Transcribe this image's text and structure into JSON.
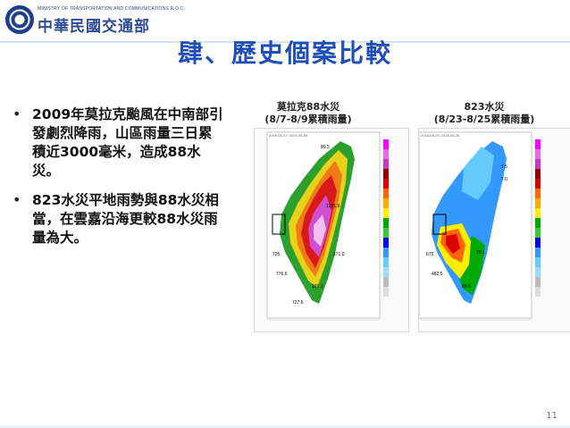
{
  "header": {
    "ministry_en": "MINISTRY OF TRANSPORTATION AND COMMUNICATIONS R.O.C.",
    "ministry_zh": "中華民國交通部"
  },
  "slide": {
    "title": "肆、歷史個案比較",
    "bullets": [
      "2009年莫拉克颱風在中南部引發劇烈降雨，山區雨量三日累積近3000毫米，造成88水災。",
      "823水災平地雨勢與88水災相當，在雲嘉沿海更較88水災雨量為大。"
    ],
    "page_number": "11"
  },
  "maps": [
    {
      "title": "莫拉克88水災",
      "subtitle": "(8/7-8/9累積雨量)",
      "values": [
        "89.5",
        "1221.9",
        "171.0",
        "725.",
        "776.6",
        "191.1",
        "727.6"
      ]
    },
    {
      "title": "823水災",
      "subtitle": "(8/23-8/25累積雨量)",
      "values": [
        "1.5",
        "7.0",
        "79.1",
        "675.",
        "482.5",
        "85.5"
      ]
    }
  ]
}
